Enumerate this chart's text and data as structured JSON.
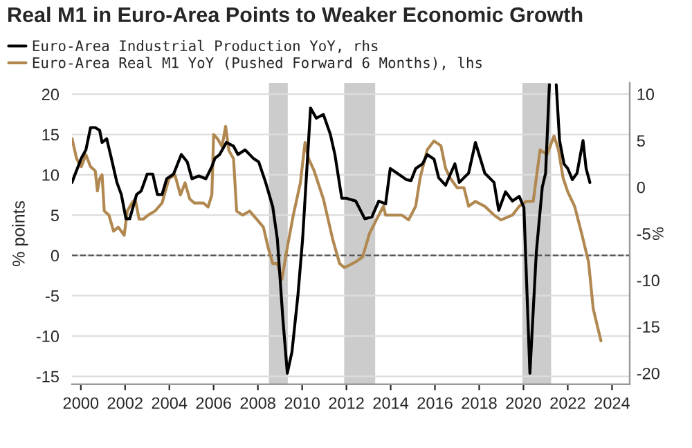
{
  "chart_data": {
    "type": "line",
    "title": "Real M1 in Euro-Area Points to Weaker Economic Growth",
    "ylabel": "% points",
    "y2label": "%",
    "xlim": [
      1999.6,
      2024.8
    ],
    "xticks": [
      {
        "value": 2000,
        "label": "2000"
      },
      {
        "value": 2002,
        "label": "2002"
      },
      {
        "value": 2004,
        "label": "2004"
      },
      {
        "value": 2006,
        "label": "2006"
      },
      {
        "value": 2008,
        "label": "2008"
      },
      {
        "value": 2010,
        "label": "2010"
      },
      {
        "value": 2012,
        "label": "2012"
      },
      {
        "value": 2014,
        "label": "2014"
      },
      {
        "value": 2016,
        "label": "2016"
      },
      {
        "value": 2018,
        "label": "2018"
      },
      {
        "value": 2020,
        "label": "2020"
      },
      {
        "value": 2022,
        "label": "2022"
      },
      {
        "value": 2024,
        "label": "2024"
      }
    ],
    "ylim": [
      -16,
      21.4
    ],
    "yticks": [
      -15,
      -10,
      -5,
      0,
      5,
      10,
      15,
      20
    ],
    "y2lim": [
      -21.2,
      11.2
    ],
    "y2ticks": [
      -20,
      -15,
      -10,
      -5,
      0,
      5,
      10
    ],
    "grid": "y",
    "legend": "top",
    "bands": [
      {
        "axis": "x",
        "from": 2008.5,
        "to": 2009.35,
        "color": "#cccccc"
      },
      {
        "axis": "x",
        "from": 2011.9,
        "to": 2013.3,
        "color": "#cccccc"
      },
      {
        "axis": "x",
        "from": 2019.95,
        "to": 2021.25,
        "color": "#cccccc"
      }
    ],
    "ref_lines": [
      {
        "axis": "y",
        "value": 0,
        "color": "#555555",
        "line_style": "dashed"
      }
    ],
    "series": [
      {
        "name": "Euro-Area Industrial Production YoY, rhs",
        "color": "#000000",
        "axis": "y2",
        "x": [
          1999.6,
          2000.02,
          2000.23,
          2000.44,
          2000.65,
          2000.85,
          2000.96,
          2001.17,
          2001.38,
          2001.63,
          2001.83,
          2002.04,
          2002.21,
          2002.52,
          2002.73,
          2003.0,
          2003.25,
          2003.46,
          2003.67,
          2003.88,
          2004.19,
          2004.54,
          2004.81,
          2005.02,
          2005.33,
          2005.65,
          2005.92,
          2006.06,
          2006.27,
          2006.58,
          2006.9,
          2007.1,
          2007.42,
          2007.79,
          2008.04,
          2008.35,
          2008.67,
          2008.88,
          2009.13,
          2009.33,
          2009.54,
          2009.81,
          2010.02,
          2010.38,
          2010.64,
          2010.96,
          2011.27,
          2011.48,
          2011.79,
          2012.0,
          2012.42,
          2012.83,
          2013.15,
          2013.46,
          2013.77,
          2013.98,
          2014.29,
          2014.71,
          2014.92,
          2015.13,
          2015.44,
          2015.65,
          2015.96,
          2016.17,
          2016.48,
          2016.9,
          2017.1,
          2017.52,
          2017.83,
          2018.25,
          2018.67,
          2018.88,
          2019.19,
          2019.5,
          2019.81,
          2020.02,
          2020.29,
          2020.58,
          2020.85,
          2021.0,
          2021.17,
          2021.3,
          2021.48,
          2021.63,
          2021.83,
          2022.0,
          2022.21,
          2022.42,
          2022.69,
          2022.83,
          2023.0
        ],
        "values": [
          0.5,
          3.1,
          4.0,
          6.4,
          6.4,
          6.1,
          4.8,
          5.2,
          3.1,
          0.5,
          -0.8,
          -3.4,
          -3.4,
          -0.8,
          -0.4,
          1.4,
          1.4,
          -0.8,
          -0.8,
          0.9,
          1.4,
          3.5,
          2.7,
          0.9,
          1.2,
          0.9,
          2.2,
          3.1,
          3.5,
          4.8,
          4.4,
          3.5,
          4.0,
          3.1,
          2.7,
          0.5,
          -2.1,
          -5.6,
          -14.2,
          -20.0,
          -17.7,
          -11.6,
          -5.6,
          8.5,
          7.4,
          7.8,
          5.7,
          3.5,
          -1.2,
          -1.2,
          -1.5,
          -3.4,
          -3.2,
          -1.5,
          -1.8,
          2.0,
          1.5,
          0.8,
          0.7,
          2.0,
          2.5,
          3.5,
          3.0,
          1.0,
          0.2,
          2.5,
          0.5,
          1.5,
          4.8,
          1.5,
          0.5,
          -2.5,
          -0.5,
          -1.5,
          -1.0,
          -2.2,
          -20.0,
          -7.0,
          0.0,
          1.5,
          11.0,
          null,
          11.0,
          5.0,
          2.5,
          2.0,
          0.8,
          1.5,
          5.0,
          2.0,
          0.5
        ]
      },
      {
        "name": "Euro-Area Real M1 YoY (Pushed Forward 6 Months), lhs",
        "color": "#b08850",
        "x": [
          1999.6,
          1999.81,
          2000.02,
          2000.23,
          2000.44,
          2000.65,
          2000.75,
          2000.85,
          2000.96,
          2001.06,
          2001.27,
          2001.48,
          2001.69,
          2001.83,
          2001.96,
          2002.1,
          2002.31,
          2002.46,
          2002.63,
          2002.83,
          2003.04,
          2003.35,
          2003.67,
          2003.98,
          2004.25,
          2004.5,
          2004.71,
          2004.92,
          2005.13,
          2005.54,
          2005.75,
          2005.92,
          2006.0,
          2006.17,
          2006.38,
          2006.54,
          2006.69,
          2006.9,
          2007.04,
          2007.31,
          2007.63,
          2007.94,
          2008.25,
          2008.46,
          2008.67,
          2008.88,
          2009.08,
          2009.33,
          2009.6,
          2009.92,
          2010.13,
          2010.29,
          2010.54,
          2010.96,
          2011.38,
          2011.69,
          2011.9,
          2012.0,
          2012.42,
          2012.73,
          2013.04,
          2013.35,
          2013.67,
          2013.77,
          2014.08,
          2014.5,
          2014.81,
          2015.13,
          2015.33,
          2015.65,
          2015.96,
          2016.27,
          2016.48,
          2016.69,
          2017.0,
          2017.31,
          2017.52,
          2017.83,
          2018.25,
          2018.67,
          2018.98,
          2019.5,
          2019.81,
          2020.13,
          2020.44,
          2020.75,
          2021.06,
          2021.38,
          2021.58,
          2021.79,
          2022.0,
          2022.31,
          2022.63,
          2022.94,
          2023.15,
          2023.35,
          2023.5
        ],
        "values": [
          14.5,
          12.0,
          11.0,
          12.5,
          11.0,
          10.5,
          8.0,
          9.5,
          10.0,
          5.5,
          5.0,
          3.0,
          3.5,
          3.0,
          2.5,
          5.5,
          6.5,
          7.0,
          4.5,
          4.5,
          5.0,
          5.5,
          6.5,
          9.5,
          10.0,
          7.5,
          9.0,
          7.0,
          6.5,
          6.5,
          6.0,
          7.5,
          15.0,
          14.5,
          13.5,
          16.0,
          13.0,
          12.0,
          5.5,
          5.0,
          5.5,
          4.5,
          3.5,
          1.0,
          -1.0,
          -1.0,
          -3.0,
          1.0,
          5.0,
          9.0,
          14.0,
          12.0,
          10.5,
          7.0,
          2.0,
          -1.0,
          -1.5,
          -1.4,
          -0.8,
          -0.2,
          2.7,
          4.4,
          6.1,
          5.0,
          5.0,
          5.0,
          4.4,
          6.1,
          9.6,
          13.1,
          14.2,
          13.6,
          10.8,
          9.6,
          8.4,
          8.4,
          6.1,
          6.7,
          6.1,
          5.0,
          4.4,
          5.0,
          6.1,
          6.7,
          6.7,
          13.1,
          12.5,
          14.8,
          13.1,
          9.6,
          7.9,
          6.1,
          2.7,
          -0.8,
          -6.6,
          -8.9,
          -10.6
        ]
      }
    ]
  }
}
